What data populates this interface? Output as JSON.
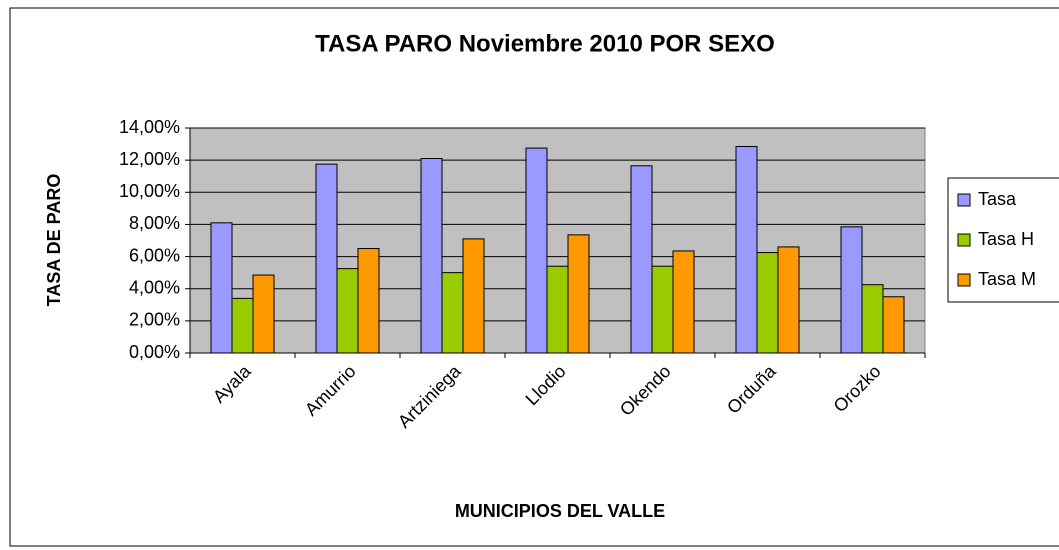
{
  "chart_data": {
    "type": "bar",
    "title": "TASA PARO Noviembre 2010 POR SEXO",
    "x_label": "MUNICIPIOS DEL VALLE",
    "y_label": "TASA DE PARO",
    "categories": [
      "Ayala",
      "Amurrio",
      "Artziniega",
      "Llodio",
      "Okendo",
      "Orduña",
      "Orozko"
    ],
    "series": [
      {
        "name": "Tasa",
        "color": "#9999ff",
        "values": [
          8.1,
          11.75,
          12.1,
          12.75,
          11.65,
          12.85,
          7.85
        ]
      },
      {
        "name": "Tasa H",
        "color": "#99cc00",
        "values": [
          3.4,
          5.25,
          5.0,
          5.4,
          5.4,
          6.25,
          4.25
        ]
      },
      {
        "name": "Tasa M",
        "color": "#ff9900",
        "values": [
          4.85,
          6.5,
          7.1,
          7.35,
          6.35,
          6.6,
          3.5
        ]
      }
    ],
    "ylim": [
      0,
      14
    ],
    "yticks": [
      {
        "value": 0,
        "label": "0,00%"
      },
      {
        "value": 2,
        "label": "2,00%"
      },
      {
        "value": 4,
        "label": "4,00%"
      },
      {
        "value": 6,
        "label": "6,00%"
      },
      {
        "value": 8,
        "label": "8,00%"
      },
      {
        "value": 10,
        "label": "10,00%"
      },
      {
        "value": 12,
        "label": "12,00%"
      },
      {
        "value": 14,
        "label": "14,00%"
      }
    ],
    "grid": true,
    "legend": "right"
  }
}
